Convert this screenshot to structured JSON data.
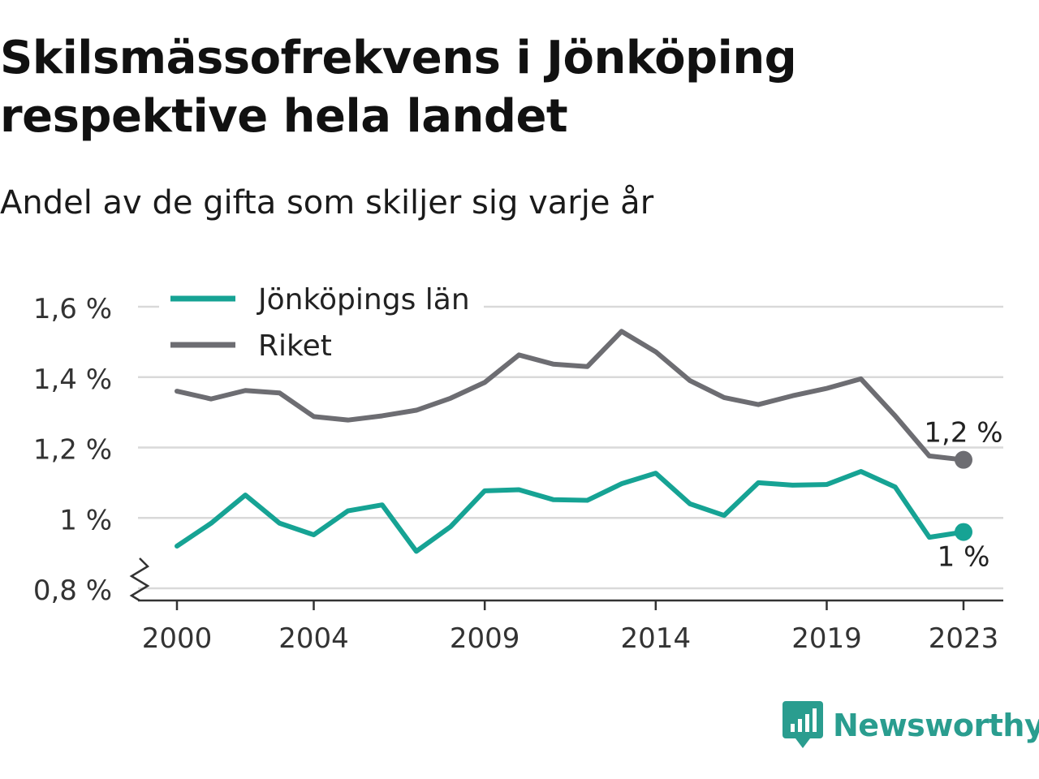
{
  "header": {
    "title": "Skilsmässofrekvens i Jönköping respektive hela landet",
    "subtitle": "Andel av de gifta som skiljer sig varje år"
  },
  "brand": {
    "name": "Newsworthy",
    "icon": "newsworthy-logo-icon",
    "color": "#2a9d8f"
  },
  "chart_data": {
    "type": "line",
    "x": [
      2000,
      2001,
      2002,
      2003,
      2004,
      2005,
      2006,
      2007,
      2008,
      2009,
      2010,
      2011,
      2012,
      2013,
      2014,
      2015,
      2016,
      2017,
      2018,
      2019,
      2020,
      2021,
      2022,
      2023
    ],
    "series": [
      {
        "name": "Jönköpings län",
        "color": "#16a394",
        "values": [
          0.92,
          0.985,
          1.065,
          0.985,
          0.952,
          1.02,
          1.037,
          0.905,
          0.975,
          1.077,
          1.08,
          1.052,
          1.05,
          1.097,
          1.127,
          1.04,
          1.007,
          1.1,
          1.093,
          1.095,
          1.132,
          1.088,
          0.945,
          0.96
        ],
        "end_label": "1 %"
      },
      {
        "name": "Riket",
        "color": "#6d6d72",
        "values": [
          1.36,
          1.338,
          1.362,
          1.355,
          1.288,
          1.278,
          1.29,
          1.306,
          1.34,
          1.385,
          1.463,
          1.437,
          1.43,
          1.53,
          1.472,
          1.39,
          1.342,
          1.322,
          1.347,
          1.368,
          1.395,
          1.29,
          1.176,
          1.165
        ],
        "end_label": "1,2 %"
      }
    ],
    "yticks": [
      {
        "value": 0.8,
        "label": "0,8 %"
      },
      {
        "value": 1.0,
        "label": "1 %"
      },
      {
        "value": 1.2,
        "label": "1,2 %"
      },
      {
        "value": 1.4,
        "label": "1,4 %"
      },
      {
        "value": 1.6,
        "label": "1,6 %"
      }
    ],
    "xticks": [
      {
        "value": 2000,
        "label": "2000"
      },
      {
        "value": 2004,
        "label": "2004"
      },
      {
        "value": 2009,
        "label": "2009"
      },
      {
        "value": 2014,
        "label": "2014"
      },
      {
        "value": 2019,
        "label": "2019"
      },
      {
        "value": 2023,
        "label": "2023"
      }
    ],
    "ylim": [
      0.8,
      1.6
    ],
    "xlim": [
      2000,
      2023
    ],
    "grid": true,
    "legend": "top-left",
    "axis_break": true
  }
}
